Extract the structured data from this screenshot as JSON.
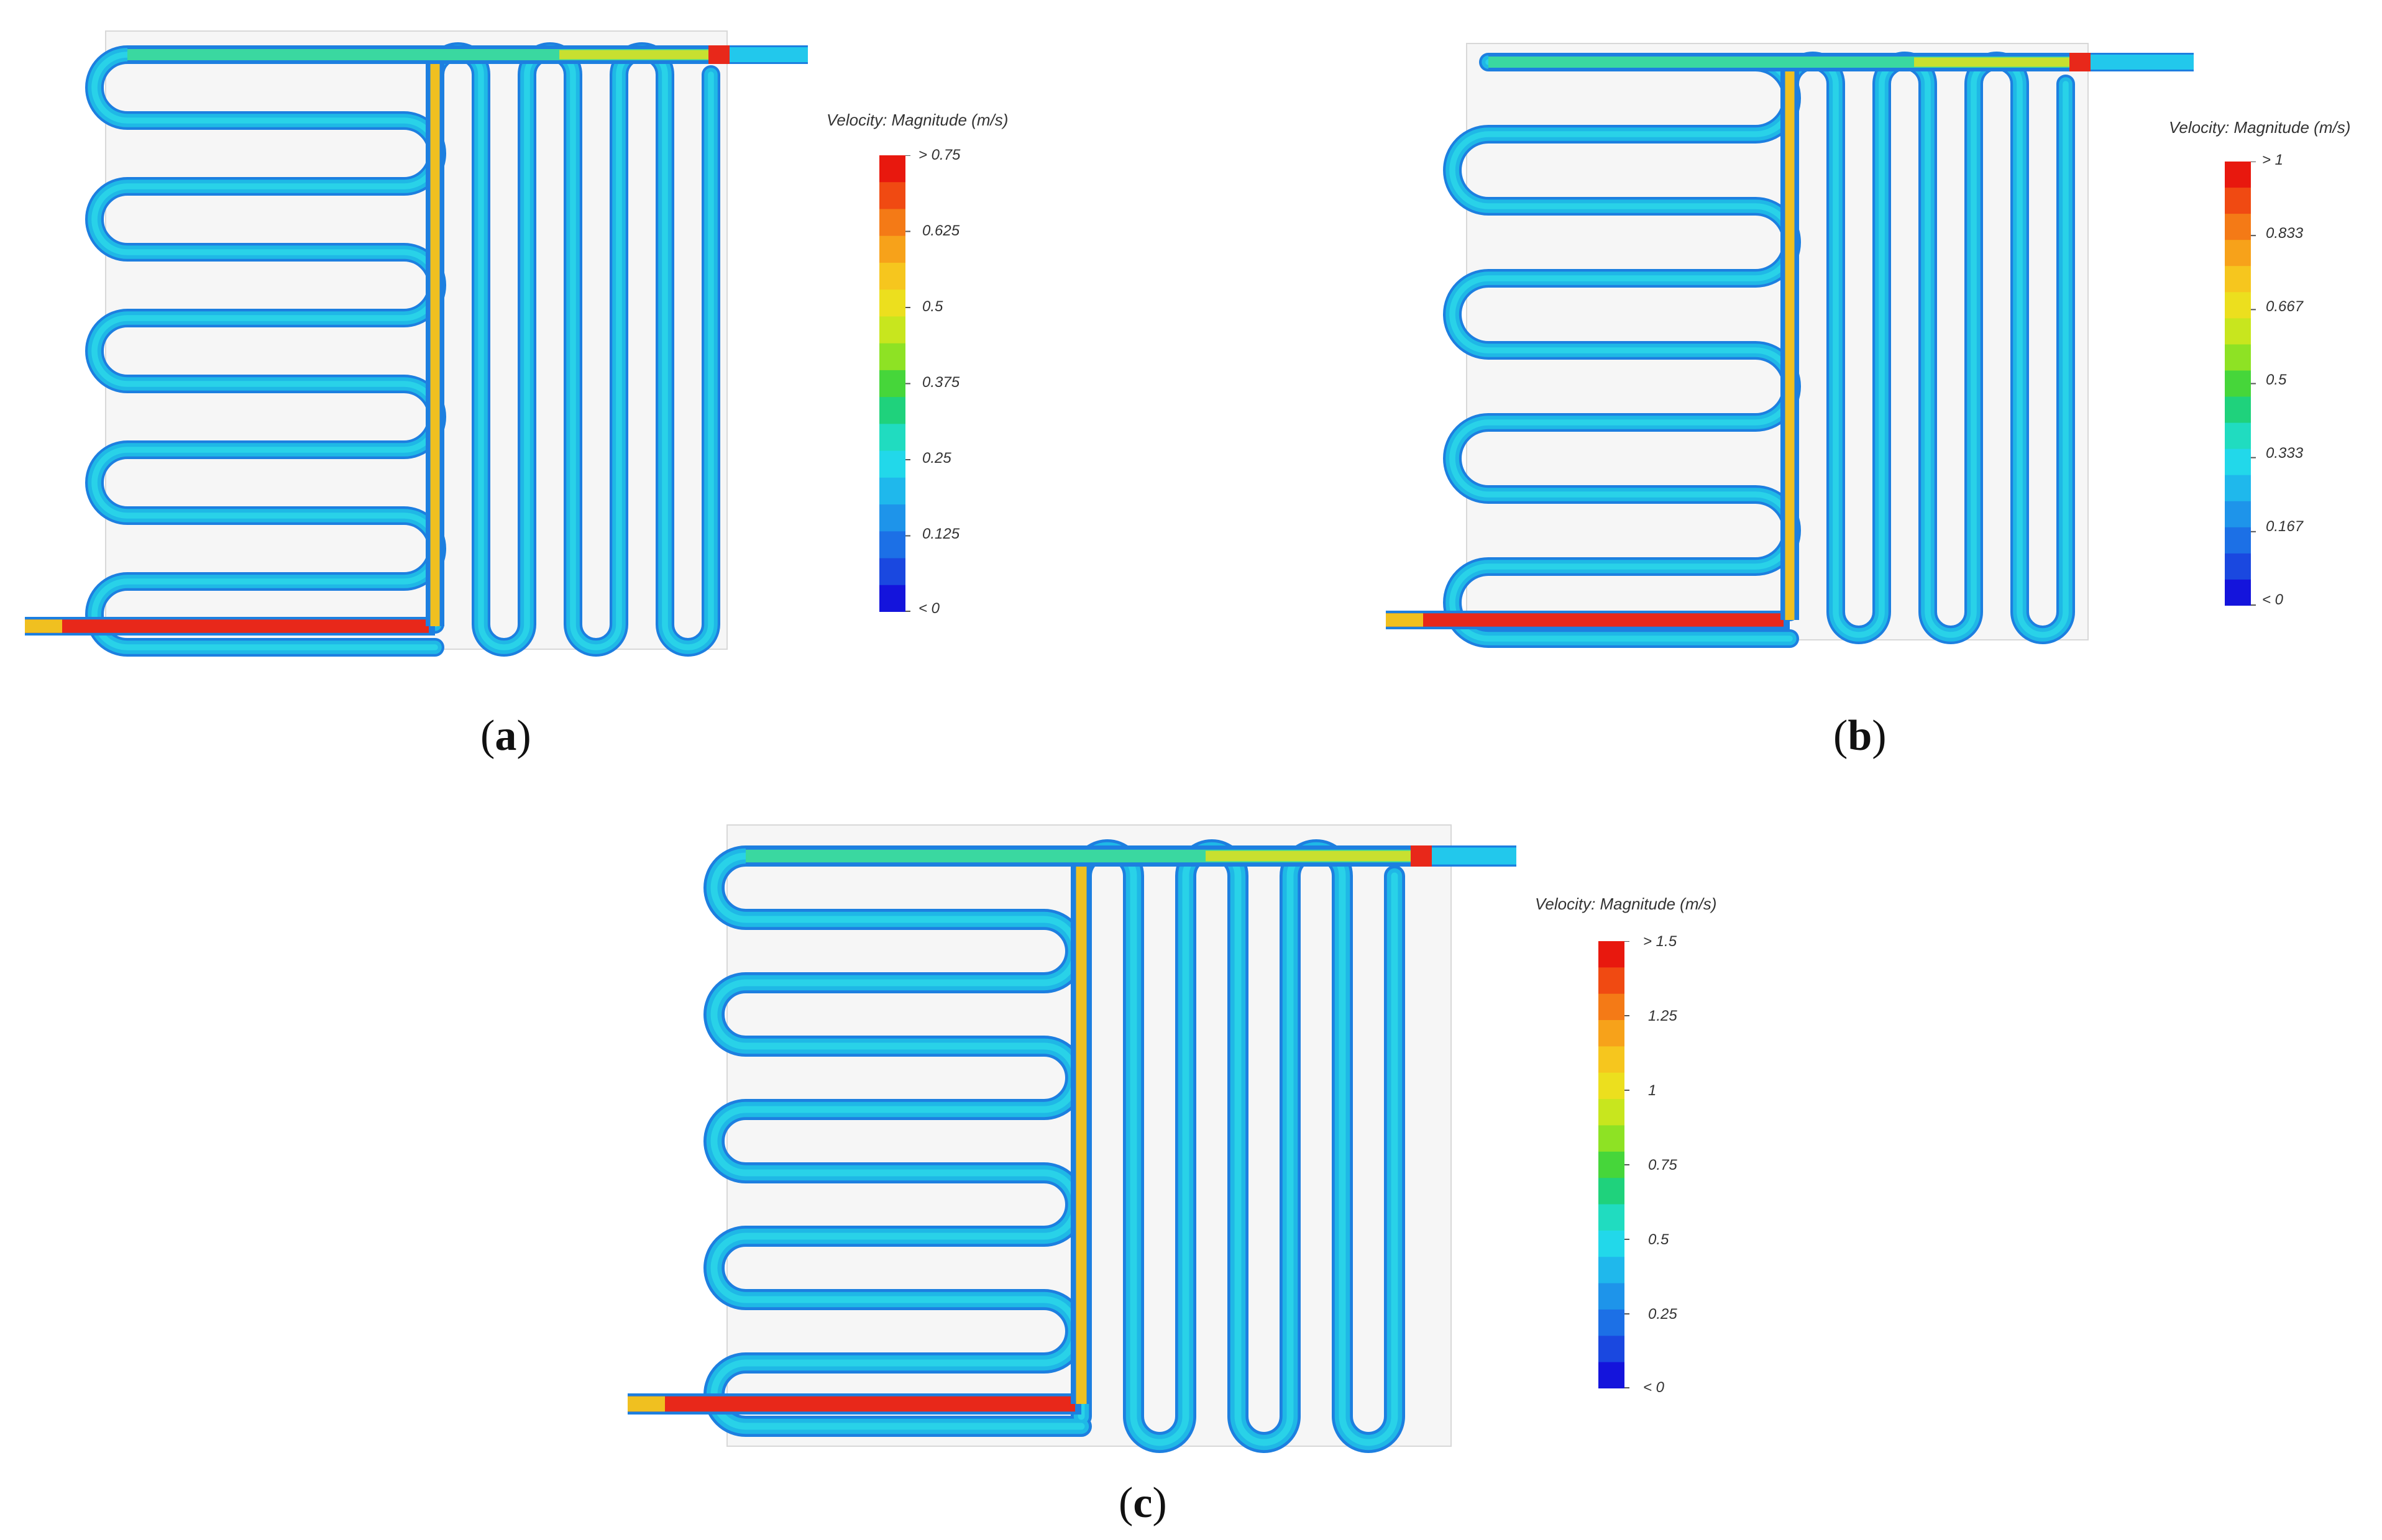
{
  "figure": {
    "panels": [
      {
        "id": "a",
        "caption_letter": "a",
        "legend_title": "Velocity: Magnitude (m/s)",
        "ticks": [
          "> 0.75",
          "0.625",
          "0.5",
          "0.375",
          "0.25",
          "0.125",
          "< 0"
        ],
        "scale_max": 0.75
      },
      {
        "id": "b",
        "caption_letter": "b",
        "legend_title": "Velocity: Magnitude (m/s)",
        "ticks": [
          "> 1",
          "0.833",
          "0.667",
          "0.5",
          "0.333",
          "0.167",
          "< 0"
        ],
        "scale_max": 1
      },
      {
        "id": "c",
        "caption_letter": "c",
        "legend_title": "Velocity: Magnitude (m/s)",
        "ticks": [
          "> 1.5",
          "1.25",
          "1",
          "0.75",
          "0.5",
          "0.25",
          "< 0"
        ],
        "scale_max": 1.5
      }
    ],
    "colors": {
      "channel_main": "#1fb8e6",
      "channel_core": "#29d2e8",
      "channel_edge": "#1d7fe0",
      "hot": "#e8281a",
      "warm": "#f0c020",
      "plate_bg": "#f6f6f6"
    }
  }
}
